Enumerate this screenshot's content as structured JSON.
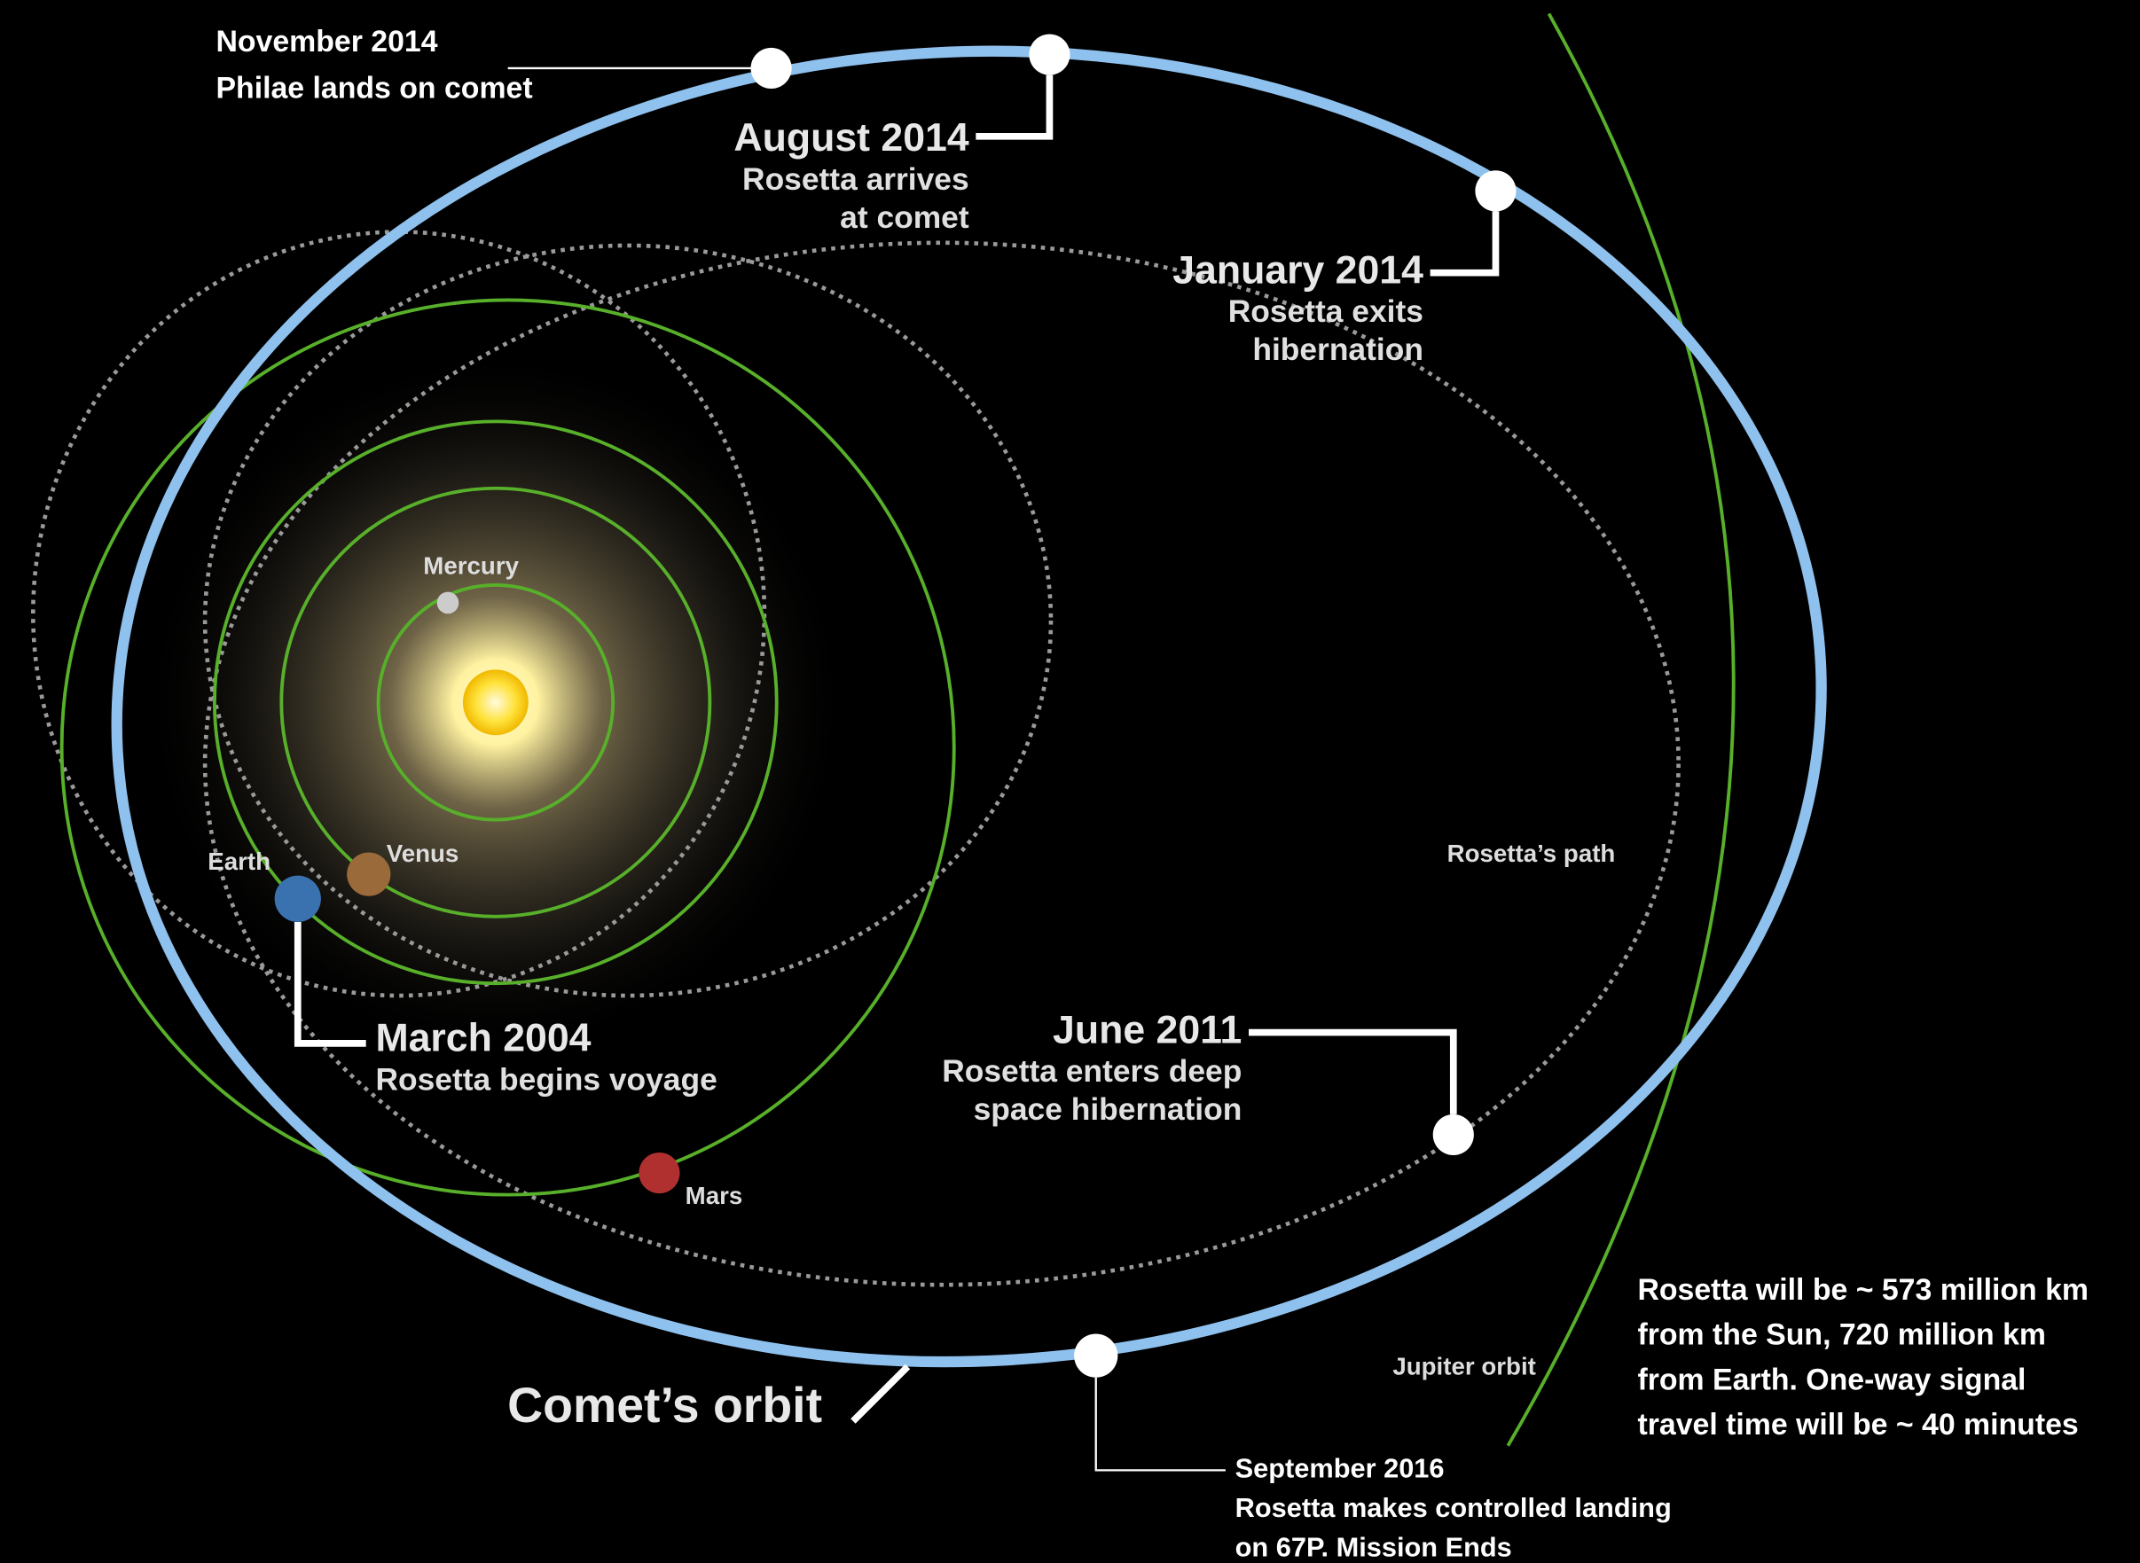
{
  "events": [
    {
      "date": "November 2014",
      "description": [
        "Philae lands on comet"
      ]
    },
    {
      "date": "August 2014",
      "description": [
        "Rosetta arrives",
        "at comet"
      ]
    },
    {
      "date": "January 2014",
      "description": [
        "Rosetta exits",
        "hibernation"
      ]
    },
    {
      "date": "March 2004",
      "description": [
        "Rosetta begins voyage"
      ]
    },
    {
      "date": "June 2011",
      "description": [
        "Rosetta enters deep",
        "space hibernation"
      ]
    },
    {
      "date": "September 2016",
      "description": [
        "Rosetta makes controlled landing",
        "on 67P.  Mission Ends"
      ]
    }
  ],
  "planets": [
    "Mercury",
    "Venus",
    "Earth",
    "Mars"
  ],
  "labels": {
    "rosetta_path": "Rosetta’s path",
    "jupiter_orbit": "Jupiter orbit",
    "comet_orbit": "Comet’s orbit"
  },
  "note": [
    "Rosetta will be ~ 573 million km",
    "from the Sun, 720 million km",
    "from Earth. One-way signal",
    "travel time will be ~ 40 minutes"
  ]
}
